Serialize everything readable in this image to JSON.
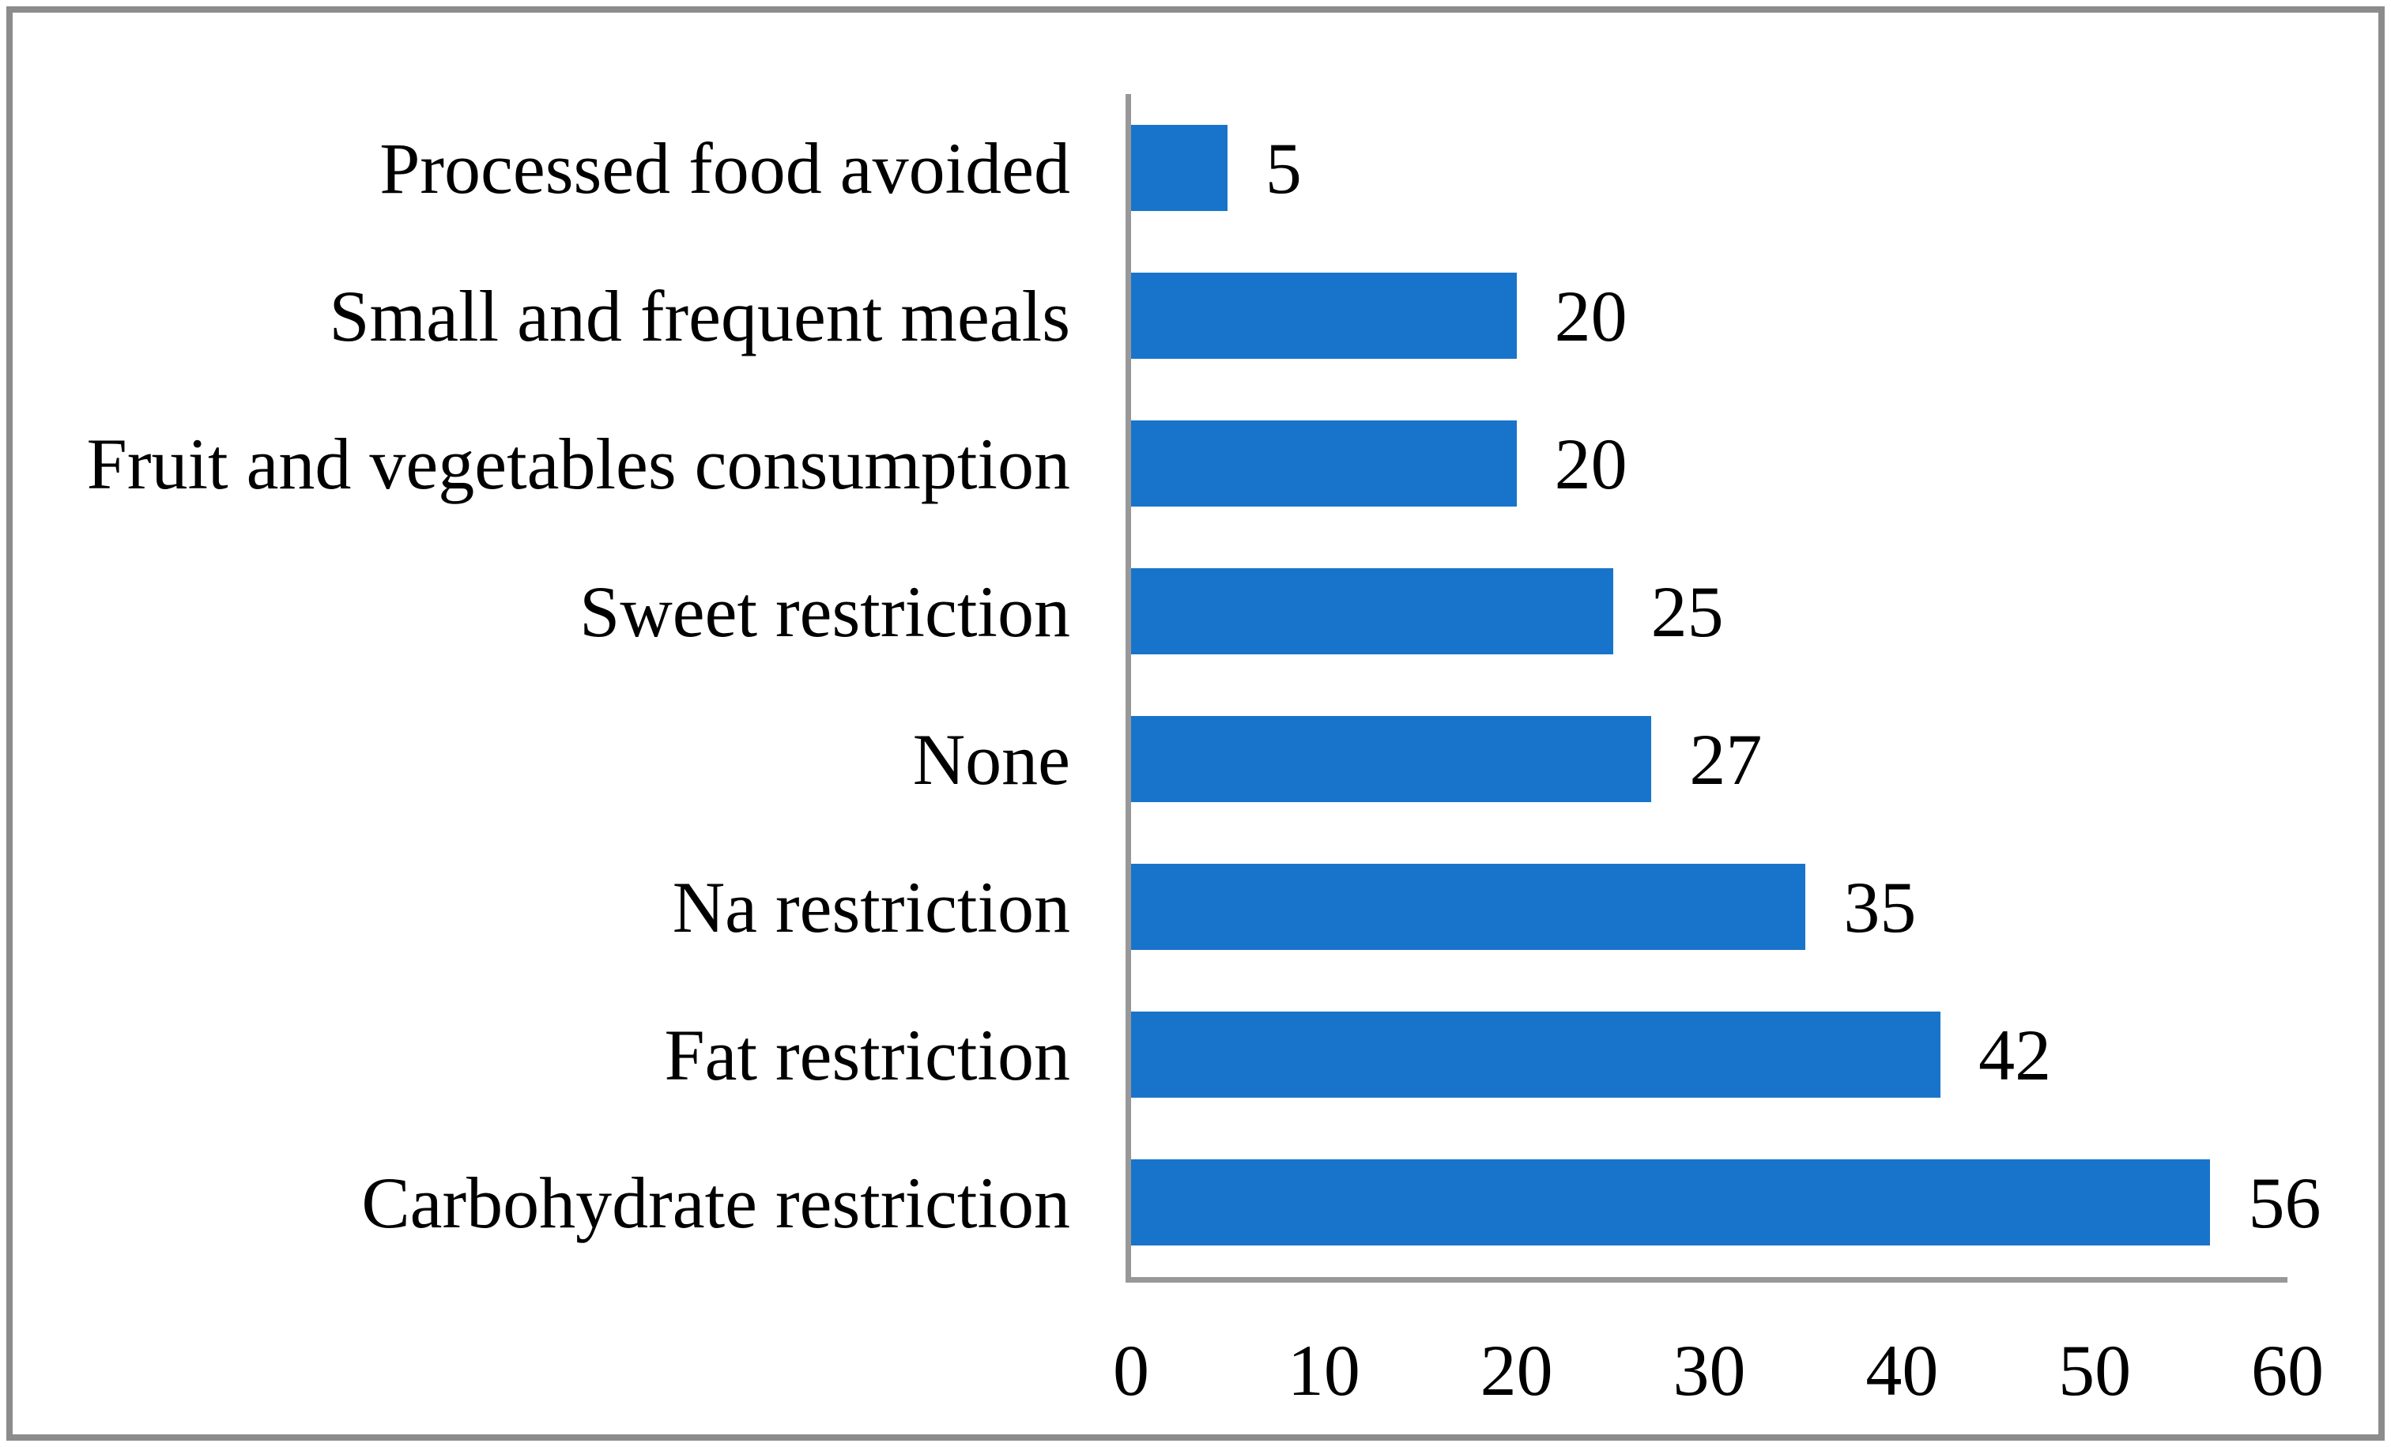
{
  "chart_data": {
    "type": "bar",
    "orientation": "horizontal",
    "title": "",
    "xlabel": "",
    "ylabel": "",
    "categories": [
      "Processed food avoided",
      "Small and frequent meals",
      "Fruit and vegetables consumption",
      "Sweet restriction",
      "None",
      "Na restriction",
      "Fat restriction",
      "Carbohydrate restriction"
    ],
    "values": [
      5,
      20,
      20,
      25,
      27,
      35,
      42,
      56
    ],
    "data_labels": [
      "5",
      "20",
      "20",
      "25",
      "27",
      "35",
      "42",
      "56"
    ],
    "xlim": [
      0,
      60
    ],
    "xticks": [
      "0",
      "10",
      "20",
      "30",
      "40",
      "50",
      "60"
    ],
    "grid": "off",
    "legend": "none",
    "colors": {
      "bar": "#1874CB",
      "axis_line": "#989898",
      "frame_border": "#8c8c8c",
      "background": "#ffffff",
      "text": "#000000"
    }
  }
}
